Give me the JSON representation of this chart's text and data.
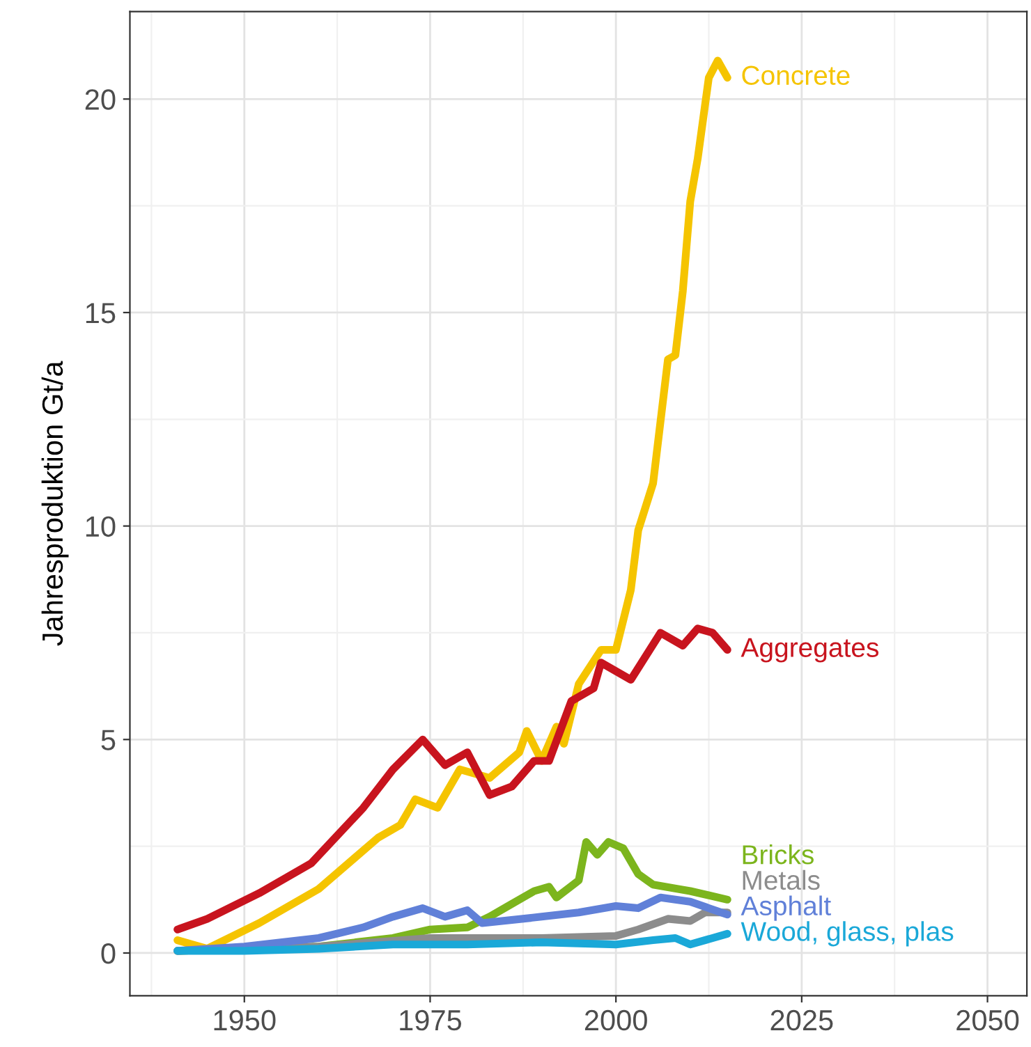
{
  "chart_data": {
    "type": "line",
    "ylabel": "Jahresproduktion Gt/a",
    "xlim": [
      1934.6,
      2055.3
    ],
    "ylim": [
      -1.0,
      22.05
    ],
    "xticks": [
      1950,
      1975,
      2000,
      2025,
      2050
    ],
    "yticks": [
      0,
      5,
      10,
      15,
      20
    ],
    "grid": true,
    "legend": false,
    "series": [
      {
        "name": "Concrete",
        "color": "#f5c400",
        "x": [
          1941,
          1945,
          1952,
          1960,
          1968,
          1971,
          1973,
          1976,
          1979,
          1983,
          1987,
          1988,
          1990,
          1992,
          1993,
          1995,
          1998,
          2000,
          2002,
          2003,
          2005,
          2007,
          2008,
          2009,
          2010,
          2011,
          2012.5,
          2013.7,
          2015
        ],
        "values": [
          0.3,
          0.1,
          0.7,
          1.5,
          2.7,
          3.0,
          3.6,
          3.4,
          4.3,
          4.1,
          4.7,
          5.2,
          4.5,
          5.3,
          4.9,
          6.3,
          7.1,
          7.1,
          8.5,
          9.9,
          11.0,
          13.9,
          14.0,
          15.5,
          17.6,
          18.6,
          20.5,
          20.9,
          20.5
        ]
      },
      {
        "name": "Aggregates",
        "color": "#c8141e",
        "x": [
          1941,
          1945,
          1952,
          1959,
          1966,
          1970,
          1974,
          1977,
          1980,
          1983,
          1986,
          1989,
          1991,
          1994,
          1997,
          1998,
          2002,
          2006,
          2009,
          2011,
          2013,
          2015
        ],
        "values": [
          0.55,
          0.8,
          1.4,
          2.1,
          3.4,
          4.3,
          5.0,
          4.4,
          4.7,
          3.7,
          3.9,
          4.5,
          4.5,
          5.9,
          6.2,
          6.8,
          6.4,
          7.5,
          7.2,
          7.6,
          7.5,
          7.1
        ]
      },
      {
        "name": "Bricks",
        "color": "#7cb51d",
        "x": [
          1941,
          1960,
          1970,
          1975,
          1980,
          1983,
          1986,
          1989,
          1991,
          1992,
          1995,
          1996,
          1997.5,
          1999,
          2001,
          2003,
          2005,
          2010,
          2015
        ],
        "values": [
          0.05,
          0.15,
          0.35,
          0.55,
          0.6,
          0.85,
          1.15,
          1.45,
          1.55,
          1.3,
          1.7,
          2.6,
          2.3,
          2.6,
          2.45,
          1.85,
          1.6,
          1.45,
          1.25
        ]
      },
      {
        "name": "Metals",
        "color": "#8c8c8c",
        "x": [
          1941,
          1960,
          1975,
          1990,
          2000,
          2003,
          2007,
          2010,
          2012,
          2015
        ],
        "values": [
          0.05,
          0.15,
          0.35,
          0.35,
          0.4,
          0.55,
          0.8,
          0.75,
          0.95,
          0.95
        ]
      },
      {
        "name": "Asphalt",
        "color": "#6080d8",
        "x": [
          1941,
          1950,
          1960,
          1966,
          1970,
          1974,
          1977,
          1980,
          1982,
          1990,
          1995,
          2000,
          2003,
          2006,
          2010,
          2015
        ],
        "values": [
          0.05,
          0.15,
          0.35,
          0.6,
          0.85,
          1.05,
          0.85,
          1.0,
          0.7,
          0.85,
          0.95,
          1.1,
          1.05,
          1.3,
          1.2,
          0.9
        ]
      },
      {
        "name": "Wood, glass, plas",
        "color": "#1aa8d8",
        "x": [
          1941,
          1950,
          1960,
          1970,
          1980,
          1990,
          2000,
          2005,
          2008,
          2010,
          2015
        ],
        "values": [
          0.05,
          0.05,
          0.1,
          0.2,
          0.2,
          0.25,
          0.2,
          0.3,
          0.35,
          0.2,
          0.45
        ]
      }
    ]
  }
}
